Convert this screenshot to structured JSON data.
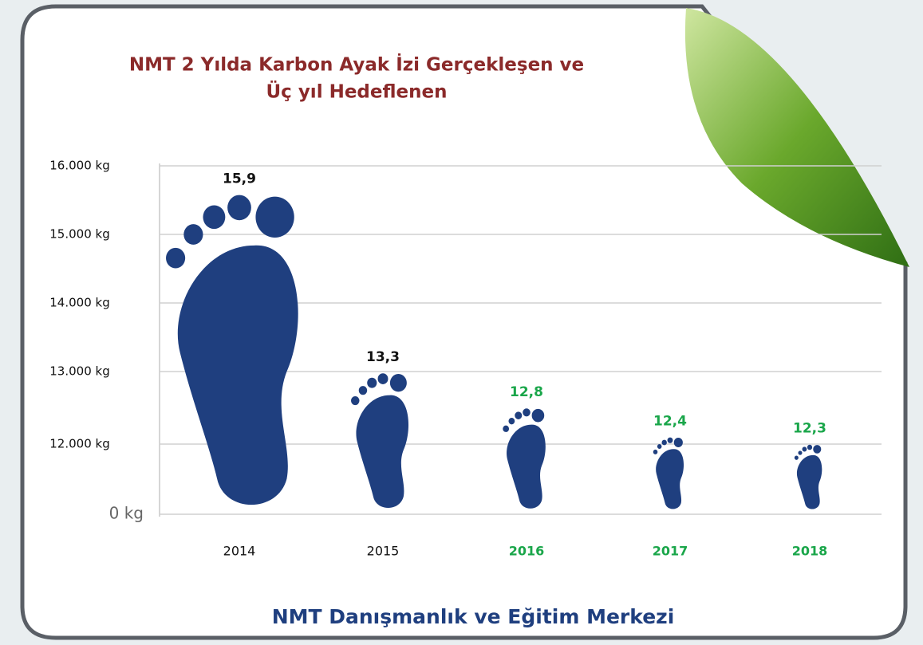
{
  "chart_data": {
    "type": "footprint",
    "title": [
      "NMT 2  Yılda Karbon Ayak İzi Gerçekleşen ve",
      "Üç yıl Hedeflenen"
    ],
    "footer": "NMT Danışmanlık ve Eğitim Merkezi",
    "categories": [
      "2014",
      "2015",
      "2016",
      "2017",
      "2018"
    ],
    "values": [
      15900,
      13300,
      12800,
      12400,
      12300
    ],
    "value_labels": [
      "15,9",
      "13,3",
      "12,8",
      "12,4",
      "12,3"
    ],
    "label_colors": [
      "#111111",
      "#111111",
      "#1aa64a",
      "#1aa64a",
      "#1aa64a"
    ],
    "color": "#1f3f7f",
    "ylim": [
      0,
      16000
    ],
    "yticks": [
      {
        "value": 0,
        "label": "0 kg"
      },
      {
        "value": 12000,
        "label": "12.000 kg"
      },
      {
        "value": 13000,
        "label": "13.000 kg"
      },
      {
        "value": 14000,
        "label": "14.000 kg"
      },
      {
        "value": 15000,
        "label": "15.000 kg"
      },
      {
        "value": 16000,
        "label": "16.000 kg"
      }
    ],
    "grid": true
  }
}
